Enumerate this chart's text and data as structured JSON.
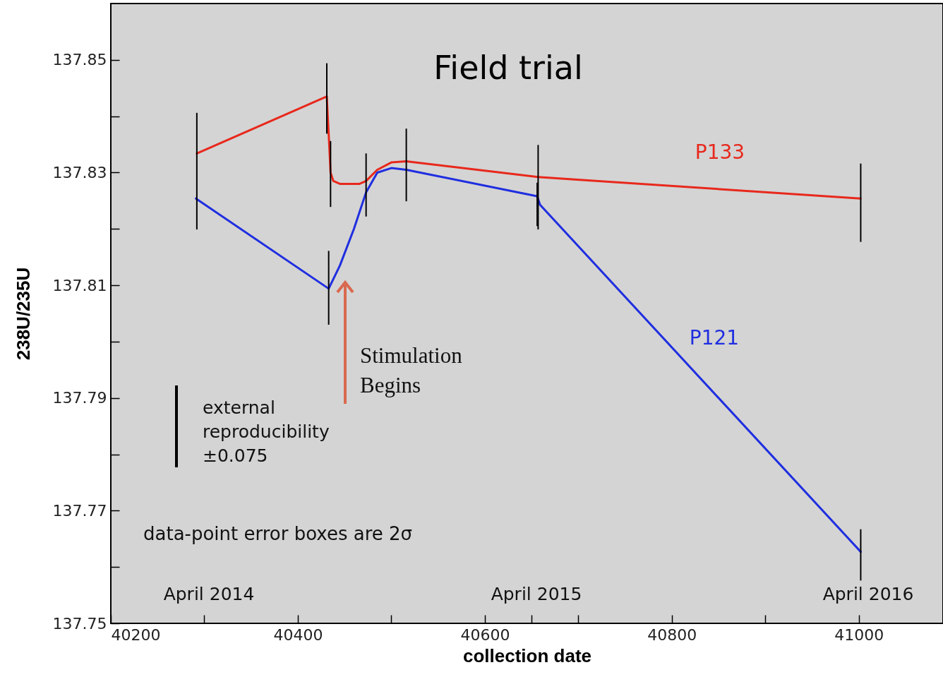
{
  "chart_data": {
    "type": "line",
    "title": "Field trial",
    "xlabel": "collection date",
    "ylabel": "238U/235U",
    "xlim": [
      40200,
      41090
    ],
    "ylim": [
      137.75,
      137.86
    ],
    "xticks": [
      40200,
      {
        "value": 40300,
        "label": null
      },
      40400,
      {
        "value": 40500,
        "label": null
      },
      40600,
      {
        "value": 40650,
        "label": null
      },
      {
        "value": 40700,
        "label": null
      },
      40800,
      {
        "value": 40900,
        "label": null
      },
      41000
    ],
    "yticks": [
      137.75,
      {
        "value": 137.76,
        "label": null
      },
      137.77,
      {
        "value": 137.78,
        "label": null
      },
      137.79,
      {
        "value": 137.8,
        "label": null
      },
      137.81,
      {
        "value": 137.82,
        "label": null
      },
      137.83,
      {
        "value": 137.84,
        "label": null
      },
      137.85
    ],
    "line_style": "solid",
    "marker": "none",
    "series": [
      {
        "name": "P133",
        "color": "#e8281c",
        "x": [
          40292,
          40431,
          40432,
          40433,
          40435,
          40438,
          40445,
          40466,
          40473,
          40485,
          40500,
          40516,
          40657,
          41002
        ],
        "values": [
          137.8334,
          137.8435,
          137.84,
          137.8369,
          137.83,
          137.8285,
          137.828,
          137.828,
          137.8285,
          137.8305,
          137.8318,
          137.832,
          137.8292,
          137.8254
        ],
        "errors": [
          [
            137.8199,
            137.8406
          ],
          [
            137.8369,
            137.8494
          ],
          null,
          null,
          [
            137.8239,
            137.8356
          ],
          null,
          null,
          null,
          [
            137.8222,
            137.8334
          ],
          null,
          null,
          [
            137.8249,
            137.8378
          ],
          [
            137.8199,
            137.8349
          ],
          [
            137.8177,
            137.8316
          ]
        ]
      },
      {
        "name": "P121",
        "color": "#1f2ee0",
        "x": [
          40291,
          40433,
          40445,
          40460,
          40473,
          40485,
          40500,
          40516,
          40656,
          40659,
          41002
        ],
        "values": [
          137.8254,
          137.8094,
          137.8135,
          137.82,
          137.8265,
          137.83,
          137.8308,
          137.8305,
          137.8258,
          137.8243,
          137.7627
        ],
        "errors": [
          null,
          [
            137.803,
            137.8161
          ],
          null,
          null,
          null,
          null,
          null,
          null,
          [
            137.8205,
            137.8282
          ],
          null,
          [
            137.7576,
            137.7667
          ]
        ]
      }
    ],
    "annotations": [
      "Stimulation\nBegins",
      "external\nreproducibility\n±0.075",
      "data-point error boxes are 2σ",
      "April 2014",
      "April 2015",
      "April 2016"
    ]
  }
}
